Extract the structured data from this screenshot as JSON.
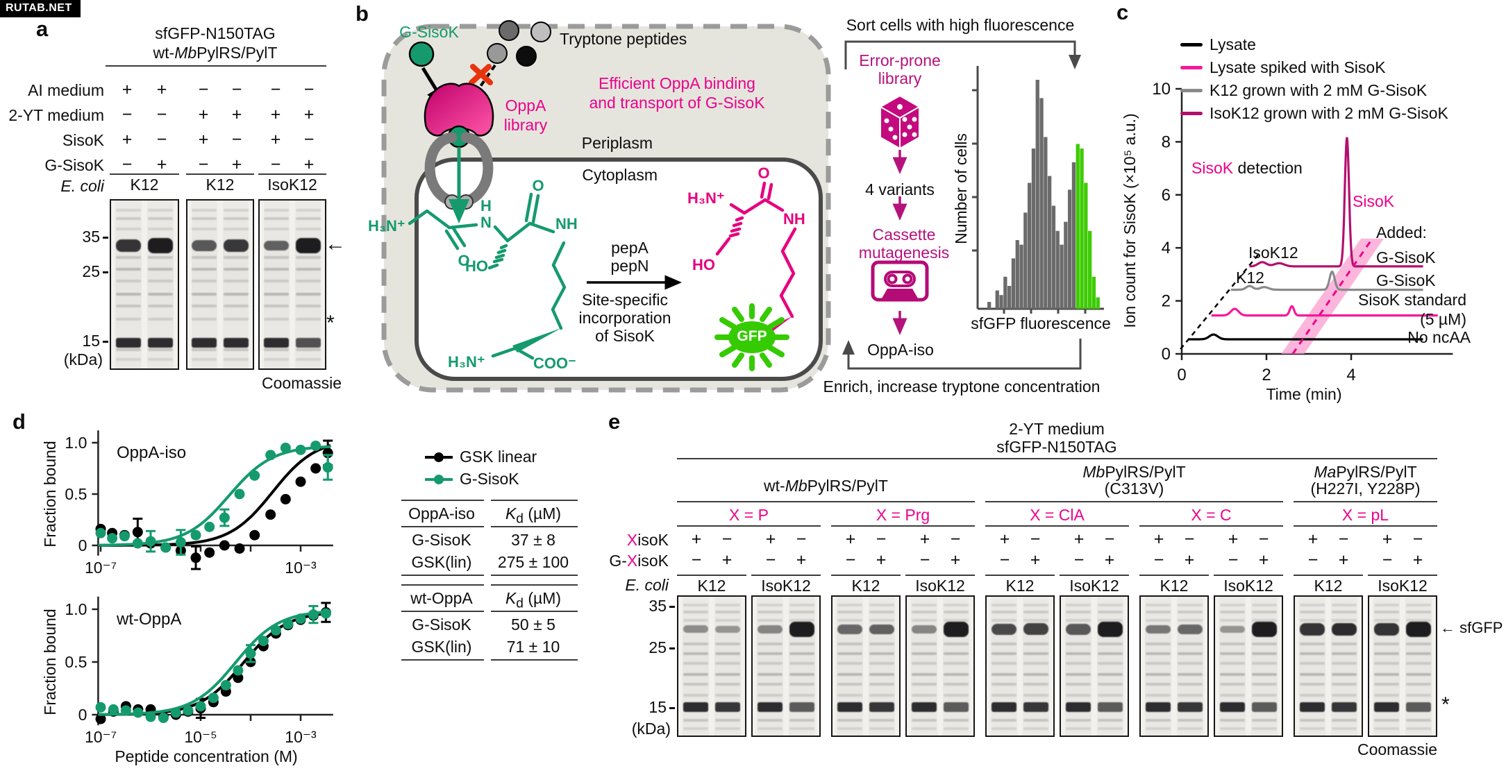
{
  "watermark": "RUTAB.NET",
  "panel_a": {
    "label": "a",
    "title_line1": "sfGFP-N150TAG",
    "title_line2_parts": {
      "pre": "wt-",
      "italic": "Mb",
      "post": "PylRS/PylT"
    },
    "rows": [
      {
        "label": "AI medium",
        "values": [
          "+",
          "+",
          "−",
          "−",
          "−",
          "−"
        ]
      },
      {
        "label": "2-YT medium",
        "values": [
          "−",
          "−",
          "+",
          "+",
          "+",
          "+"
        ]
      },
      {
        "label": "SisoK",
        "values": [
          "+",
          "−",
          "+",
          "−",
          "+",
          "−"
        ]
      },
      {
        "label": "G-SisoK",
        "values": [
          "−",
          "+",
          "−",
          "+",
          "−",
          "+"
        ]
      }
    ],
    "ecoli_label": "E. coli",
    "strains": [
      "K12",
      "K12",
      "IsoK12"
    ],
    "kda_markers": [
      "35",
      "25",
      "15"
    ],
    "kda_unit": "(kDa)",
    "stain": "Coomassie",
    "sfgfp_arrow": "←",
    "asterisk": "*",
    "gels": [
      {
        "sfgfp": [
          0.85,
          1.0
        ]
      },
      {
        "sfgfp": [
          0.6,
          0.82
        ]
      },
      {
        "sfgfp": [
          0.55,
          1.0
        ]
      }
    ]
  },
  "panel_b": {
    "label": "b",
    "g_sisok": "G-SisoK",
    "tryptone": "Tryptone peptides",
    "efficient_line1": "Efficient OppA binding",
    "efficient_line2": "and transport of G-SisoK",
    "oppa_line1": "OppA",
    "oppa_line2": "library",
    "periplasm": "Periplasm",
    "cytoplasm": "Cytoplasm",
    "pepa": "pepA",
    "pepn": "pepN",
    "site_line1": "Site-specific",
    "site_line2": "incorporation",
    "site_line3": "of SisoK",
    "gfp": "GFP",
    "chem_green": {
      "h3n1": "H₃N⁺",
      "o1": "O",
      "h": "H",
      "n": "N",
      "o2": "O",
      "nh": "NH",
      "ho": "HO",
      "h3n2": "H₃N⁺",
      "coo": "COO⁻"
    },
    "chem_magenta": {
      "h3n": "H₃N⁺",
      "o": "O",
      "nh": "NH",
      "ho": "HO"
    },
    "sort_title": "Sort cells with high fluorescence",
    "flow_line1": "Error-prone",
    "flow_line2": "library",
    "flow_variants": "4 variants",
    "flow_cassette1": "Cassette",
    "flow_cassette2": "mutagenesis",
    "flow_result": "OppA-iso",
    "enrich": "Enrich, increase tryptone concentration",
    "hist_ylabel": "Number of cells",
    "hist_xlabel": "sfGFP fluorescence"
  },
  "panel_c": {
    "label": "c",
    "legend": [
      {
        "label": "Lysate",
        "color": "#000000"
      },
      {
        "label": "Lysate spiked with SisoK",
        "color": "#f5199a"
      },
      {
        "label": "K12 grown with 2 mM G-SisoK",
        "color": "#8a8a8a"
      },
      {
        "label": "IsoK12 grown with 2 mM G-SisoK",
        "color": "#b3106e"
      }
    ],
    "detection_colored": "SisoK",
    "detection_rest": " detection",
    "peak_label": "SisoK",
    "tag_isok12": "IsoK12",
    "tag_k12": "K12",
    "added_header": "Added:",
    "added_labels": [
      "G-SisoK",
      "G-SisoK",
      "SisoK standard",
      "(5 µM)",
      "No ncAA"
    ]
  },
  "panel_d": {
    "label": "d",
    "legend": [
      {
        "label": "GSK linear",
        "color": "#000000"
      },
      {
        "label": "G-SisoK",
        "color": "#159a6d"
      }
    ],
    "plot1_title": "OppA-iso",
    "plot2_title": "wt-OppA",
    "ylabel": "Fraction bound",
    "xlabel": "Peptide concentration (M)",
    "tables": [
      {
        "col1_header": "OppA-iso",
        "kd_italic": "K",
        "kd_sub": "d",
        "kd_unit": " (µM)",
        "rows": [
          [
            "G-SisoK",
            "37 ± 8"
          ],
          [
            "GSK(lin)",
            "275 ± 100"
          ]
        ]
      },
      {
        "col1_header": "wt-OppA",
        "kd_italic": "K",
        "kd_sub": "d",
        "kd_unit": " (µM)",
        "rows": [
          [
            "G-SisoK",
            "50 ± 5"
          ],
          [
            "GSK(lin)",
            "71 ± 10"
          ]
        ]
      }
    ]
  },
  "panel_e": {
    "label": "e",
    "title_line1": "2-YT medium",
    "title_line2": "sfGFP-N150TAG",
    "groups": [
      {
        "name_parts": {
          "pre": "wt-",
          "italic": "Mb",
          "post": "PylRS/PylT"
        },
        "sub": "",
        "pairs": [
          {
            "x_label": "X = P"
          },
          {
            "x_label": "X = Prg"
          }
        ]
      },
      {
        "name_parts": {
          "pre": "",
          "italic": "Mb",
          "post": "PylRS/PylT"
        },
        "sub": "(C313V)",
        "pairs": [
          {
            "x_label": "X = ClA"
          },
          {
            "x_label": "X = C"
          }
        ]
      },
      {
        "name_parts": {
          "pre": "",
          "italic": "Ma",
          "post": "PylRS/PylT"
        },
        "sub": "(H227I, Y228P)",
        "pairs": [
          {
            "x_label": "X = pL"
          }
        ]
      }
    ],
    "row_xisok": {
      "x": "X",
      "rest": "isoK",
      "values": [
        "+",
        "−",
        "+",
        "−",
        "+",
        "−",
        "+",
        "−",
        "+",
        "−",
        "+",
        "−",
        "+",
        "−",
        "+",
        "−",
        "+",
        "−",
        "+",
        "−"
      ]
    },
    "row_gxisok": {
      "pre": "G-",
      "x": "X",
      "rest": "isoK",
      "values": [
        "−",
        "+",
        "−",
        "+",
        "−",
        "+",
        "−",
        "+",
        "−",
        "+",
        "−",
        "+",
        "−",
        "+",
        "−",
        "+",
        "−",
        "+",
        "−",
        "+"
      ]
    },
    "ecoli_label": "E. coli",
    "strain_pair": [
      "K12",
      "IsoK12"
    ],
    "kda_markers": [
      "35",
      "25",
      "15"
    ],
    "kda_unit": "(kDa)",
    "sfgfp_label": "← sfGFP",
    "asterisk": "*",
    "stain": "Coomassie",
    "gels": [
      {
        "sfgfp": [
          0.25,
          0.2
        ]
      },
      {
        "sfgfp": [
          0.3,
          1.0
        ]
      },
      {
        "sfgfp": [
          0.5,
          0.55
        ]
      },
      {
        "sfgfp": [
          0.3,
          1.0
        ]
      },
      {
        "sfgfp": [
          0.7,
          0.75
        ]
      },
      {
        "sfgfp": [
          0.6,
          1.0
        ]
      },
      {
        "sfgfp": [
          0.4,
          0.5
        ]
      },
      {
        "sfgfp": [
          0.2,
          1.0
        ]
      },
      {
        "sfgfp": [
          0.85,
          0.9
        ]
      },
      {
        "sfgfp": [
          0.85,
          1.0
        ]
      }
    ]
  },
  "chart_data": [
    {
      "id": "sort-histogram",
      "type": "bar",
      "title": "",
      "xlabel": "sfGFP fluorescence",
      "ylabel": "Number of cells",
      "values": [
        3,
        0,
        8,
        6,
        14,
        10,
        22,
        30,
        28,
        42,
        55,
        70,
        100,
        92,
        75,
        58,
        45,
        34,
        28,
        38,
        52,
        64,
        72,
        70,
        55,
        34,
        14,
        5
      ],
      "green_from": 22,
      "bar_color": "#6b6b6b",
      "green_color": "#3ecb04"
    },
    {
      "id": "sisok-chromatogram",
      "type": "line",
      "title": "",
      "xlabel": "Time (min)",
      "ylabel": "Ion count for SisoK (×10⁵ a.u.)",
      "xlim": [
        0,
        6.4
      ],
      "ylim": [
        0,
        10
      ],
      "xticks": [
        0,
        2,
        4
      ],
      "yticks": [
        0,
        2,
        4,
        6,
        8,
        10
      ],
      "traces": [
        {
          "name": "Lysate",
          "annotation": "No ncAA",
          "color": "#000000",
          "start": 0.16,
          "end": 5.7,
          "baseline": 0.55,
          "peaks": [
            [
              0.75,
              0.18,
              0.1
            ]
          ]
        },
        {
          "name": "Lysate spiked with SisoK",
          "annotation": "SisoK standard (5 µM)",
          "color": "#f5199a",
          "start": 0.7,
          "end": 6.05,
          "baseline": 1.45,
          "peaks": [
            [
              1.25,
              0.25,
              0.09
            ],
            [
              2.6,
              0.35,
              0.05
            ]
          ]
        },
        {
          "name": "K12 grown with 2 mM G-SisoK",
          "annotation": "G-SisoK",
          "color": "#8a8a8a",
          "start": 1.16,
          "end": 5.7,
          "baseline": 2.42,
          "peaks": [
            [
              1.6,
              0.14,
              0.08
            ],
            [
              1.95,
              0.1,
              0.1
            ],
            [
              3.55,
              0.68,
              0.06
            ]
          ]
        },
        {
          "name": "IsoK12 grown with 2 mM G-SisoK",
          "annotation": "G-SisoK",
          "color": "#b3106e",
          "start": 1.6,
          "end": 5.7,
          "baseline": 3.3,
          "peaks": [
            [
              1.9,
              0.16,
              0.1
            ],
            [
              2.3,
              0.12,
              0.12
            ],
            [
              3.9,
              4.85,
              0.05
            ]
          ]
        }
      ],
      "diagonal_dashed": [
        [
          -0.03,
          0.18
        ],
        [
          1.85,
          3.83
        ]
      ],
      "pink_band": {
        "poly_t": [
          2.35,
          2.89,
          4.77,
          4.23
        ],
        "top_v": 4.35,
        "color": "#fb9dcf",
        "line_t": [
          2.62,
          4.5
        ],
        "line_color": "#ec008c"
      }
    },
    {
      "id": "binding-oppa-iso",
      "type": "scatter",
      "title": "OppA-iso",
      "ylabel": "Fraction bound",
      "ylim": [
        -0.3,
        1.12
      ],
      "yticks": [
        {
          "v": 0,
          "t": "0"
        },
        {
          "v": 0.5,
          "t": "0.5"
        },
        {
          "v": 1,
          "t": "1.0"
        }
      ],
      "xtick_decades": [
        -7,
        -6,
        -5,
        -4,
        -3
      ],
      "xtick_labels": [
        {
          "d": -7,
          "t": "10⁻⁷"
        },
        {
          "d": -3,
          "t": "10⁻³"
        }
      ],
      "series": [
        {
          "name": "GSK linear",
          "color": "#000000",
          "kd_m": 0.000275,
          "bmax": 1.04,
          "points": [
            [
              1e-07,
              0.16
            ],
            [
              1.7e-07,
              0.12
            ],
            [
              3e-07,
              0.1
            ],
            [
              5.5e-07,
              0.13,
              0.13
            ],
            [
              1e-06,
              0.02
            ],
            [
              2e-06,
              -0.02
            ],
            [
              4e-06,
              -0.05
            ],
            [
              8e-06,
              -0.12,
              0.11
            ],
            [
              1.5e-05,
              -0.07
            ],
            [
              3e-05,
              0.0
            ],
            [
              6e-05,
              -0.03
            ],
            [
              0.00012,
              0.1
            ],
            [
              0.00025,
              0.3
            ],
            [
              0.0005,
              0.45
            ],
            [
              0.001,
              0.62
            ],
            [
              0.002,
              0.75
            ],
            [
              0.0035,
              0.9,
              0.12
            ]
          ]
        },
        {
          "name": "G-SisoK",
          "color": "#159a6d",
          "kd_m": 3.7e-05,
          "bmax": 0.97,
          "points": [
            [
              1e-07,
              0.12
            ],
            [
              1.7e-07,
              0.07
            ],
            [
              3e-07,
              0.09
            ],
            [
              5.5e-07,
              0.02
            ],
            [
              1e-06,
              0.04,
              0.1
            ],
            [
              2e-06,
              -0.02
            ],
            [
              4e-06,
              0.03,
              0.12
            ],
            [
              8e-06,
              0.1
            ],
            [
              1.5e-05,
              0.18
            ],
            [
              3e-05,
              0.27,
              0.08
            ],
            [
              6e-05,
              0.5
            ],
            [
              0.00012,
              0.68
            ],
            [
              0.00025,
              0.88
            ],
            [
              0.0005,
              0.95
            ],
            [
              0.001,
              0.93
            ],
            [
              0.002,
              0.97
            ],
            [
              0.0035,
              0.76,
              0.12
            ]
          ]
        }
      ]
    },
    {
      "id": "binding-wt-oppa",
      "type": "scatter",
      "title": "wt-OppA",
      "ylabel": "Fraction bound",
      "xlabel": "Peptide concentration (M)",
      "ylim": [
        -0.3,
        1.12
      ],
      "yticks": [
        {
          "v": 0,
          "t": "0"
        },
        {
          "v": 0.5,
          "t": "0.5"
        },
        {
          "v": 1,
          "t": "1.0"
        }
      ],
      "xtick_decades": [
        -7,
        -6,
        -5,
        -4,
        -3
      ],
      "xtick_labels": [
        {
          "d": -7,
          "t": "10⁻⁷"
        },
        {
          "d": -5,
          "t": "10⁻⁵"
        },
        {
          "d": -3,
          "t": "10⁻³"
        }
      ],
      "series": [
        {
          "name": "GSK linear",
          "color": "#000000",
          "kd_m": 7.1e-05,
          "bmax": 0.98,
          "points": [
            [
              1e-07,
              -0.04
            ],
            [
              1.8e-07,
              0.03
            ],
            [
              3.2e-07,
              0.08
            ],
            [
              5.6e-07,
              0.05
            ],
            [
              1e-06,
              0.05
            ],
            [
              1.8e-06,
              -0.02
            ],
            [
              3.2e-06,
              0.0
            ],
            [
              5.6e-06,
              0.03
            ],
            [
              1e-05,
              0.06,
              0.09
            ],
            [
              1.8e-05,
              0.12
            ],
            [
              3.2e-05,
              0.22
            ],
            [
              5.6e-05,
              0.35
            ],
            [
              0.0001,
              0.5
            ],
            [
              0.00018,
              0.65
            ],
            [
              0.00032,
              0.77
            ],
            [
              0.00056,
              0.85
            ],
            [
              0.001,
              0.9
            ],
            [
              0.0018,
              0.94
            ],
            [
              0.0032,
              0.97,
              0.09
            ]
          ]
        },
        {
          "name": "G-SisoK",
          "color": "#159a6d",
          "kd_m": 5e-05,
          "bmax": 0.99,
          "points": [
            [
              1e-07,
              0.07
            ],
            [
              1.8e-07,
              0.05
            ],
            [
              3.2e-07,
              0.04
            ],
            [
              5.6e-07,
              0.02
            ],
            [
              1e-06,
              -0.02
            ],
            [
              1.8e-06,
              -0.03
            ],
            [
              3.2e-06,
              0.02
            ],
            [
              5.6e-06,
              0.04
            ],
            [
              1e-05,
              0.08
            ],
            [
              1.8e-05,
              0.16
            ],
            [
              3.2e-05,
              0.28
            ],
            [
              5.6e-05,
              0.42
            ],
            [
              0.0001,
              0.58,
              0.08
            ],
            [
              0.00018,
              0.7
            ],
            [
              0.00032,
              0.8
            ],
            [
              0.00056,
              0.86
            ],
            [
              0.001,
              0.91
            ],
            [
              0.0018,
              0.95,
              0.08
            ],
            [
              0.0032,
              0.96
            ]
          ]
        }
      ]
    }
  ]
}
